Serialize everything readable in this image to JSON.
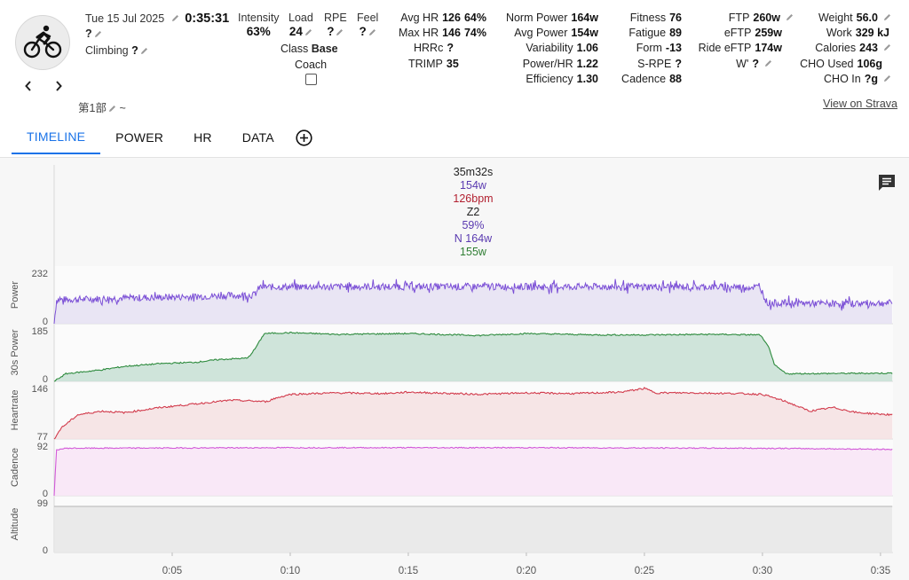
{
  "activity": {
    "date": "Tue 15 Jul 2025",
    "elapsed": "0:35:31",
    "title_value": "?",
    "climbing_label": "Climbing",
    "climbing_value": "?",
    "section_name": "第1部",
    "section_suffix": "~",
    "icon": "cycling-icon"
  },
  "stats": {
    "intensity_label": "Intensity",
    "intensity_value": "63%",
    "load_label": "Load",
    "load_value": "24",
    "rpe_label": "RPE",
    "rpe_value": "?",
    "feel_label": "Feel",
    "feel_value": "?",
    "class_label": "Class",
    "class_value": "Base",
    "coach_label": "Coach"
  },
  "hr_stats": {
    "avg_hr_label": "Avg HR",
    "avg_hr_value": "126",
    "avg_hr_pct": "64%",
    "max_hr_label": "Max HR",
    "max_hr_value": "146",
    "max_hr_pct": "74%",
    "hrrc_label": "HRRc",
    "hrrc_value": "?",
    "trimp_label": "TRIMP",
    "trimp_value": "35"
  },
  "power_stats": {
    "norm_power_label": "Norm Power",
    "norm_power_value": "164w",
    "avg_power_label": "Avg Power",
    "avg_power_value": "154w",
    "variability_label": "Variability",
    "variability_value": "1.06",
    "power_hr_label": "Power/HR",
    "power_hr_value": "1.22",
    "efficiency_label": "Efficiency",
    "efficiency_value": "1.30"
  },
  "fitness_stats": {
    "fitness_label": "Fitness",
    "fitness_value": "76",
    "fatigue_label": "Fatigue",
    "fatigue_value": "89",
    "form_label": "Form",
    "form_value": "-13",
    "srpe_label": "S-RPE",
    "srpe_value": "?",
    "cadence_label": "Cadence",
    "cadence_value": "88"
  },
  "ftp_stats": {
    "ftp_label": "FTP",
    "ftp_value": "260w",
    "eftp_label": "eFTP",
    "eftp_value": "259w",
    "ride_eftp_label": "Ride eFTP",
    "ride_eftp_value": "174w",
    "wprime_label": "W'",
    "wprime_value": "?"
  },
  "body_stats": {
    "weight_label": "Weight",
    "weight_value": "56.0",
    "work_label": "Work",
    "work_value": "329 kJ",
    "calories_label": "Calories",
    "calories_value": "243",
    "cho_used_label": "CHO Used",
    "cho_used_value": "106g",
    "cho_in_label": "CHO In",
    "cho_in_value": "?g"
  },
  "strava_link": "View on Strava",
  "tabs": [
    {
      "label": "TIMELINE",
      "active": true
    },
    {
      "label": "POWER",
      "active": false
    },
    {
      "label": "HR",
      "active": false
    },
    {
      "label": "DATA",
      "active": false
    }
  ],
  "hover_info": {
    "duration": "35m32s",
    "power": "154w",
    "heartrate": "126bpm",
    "zone": "Z2",
    "percent": "59%",
    "norm_power": "N 164w",
    "thirty_s": "155w"
  },
  "colors": {
    "accent": "#1a73e8",
    "power": "#7b4fd6",
    "thirty_s_power": "#2e8b3e",
    "heartrate": "#d23c4d",
    "cadence": "#d25ad8",
    "altitude": "#b5b5b5",
    "info_power": "#5a3ab0",
    "info_hr": "#b22030",
    "info_30s": "#2e7d32"
  },
  "chart_data": {
    "type": "line",
    "x_axis": {
      "unit": "minutes",
      "range": [
        0,
        35.53
      ],
      "ticks": [
        5,
        10,
        15,
        20,
        25,
        30,
        35
      ],
      "tick_labels": [
        "0:05",
        "0:10",
        "0:15",
        "0:20",
        "0:25",
        "0:30",
        "0:35"
      ]
    },
    "panels": [
      {
        "name": "Power",
        "ylim": [
          0,
          232
        ],
        "y_labels": [
          "232",
          "0"
        ],
        "series": [
          {
            "x": [
              0,
              0.1,
              1,
              3,
              5,
              7,
              8.5,
              8.7,
              10,
              15,
              20,
              25,
              29.9,
              30.2,
              31,
              33,
              35.5
            ],
            "y": [
              0,
              110,
              112,
              118,
              122,
              128,
              132,
              168,
              170,
              170,
              170,
              170,
              168,
              95,
              95,
              92,
              95
            ]
          }
        ]
      },
      {
        "name": "30s Power",
        "ylim": [
          0,
          185
        ],
        "y_labels": [
          "185",
          "0"
        ],
        "series": [
          {
            "x": [
              0,
              0.5,
              2,
              3,
              4.5,
              6,
              7,
              8.2,
              8.5,
              8.9,
              10,
              12,
              15,
              18,
              20,
              23,
              25,
              28,
              29.9,
              30.3,
              30.5,
              31,
              35.5
            ],
            "y": [
              0,
              28,
              42,
              55,
              65,
              70,
              80,
              85,
              118,
              175,
              178,
              172,
              175,
              168,
              175,
              170,
              170,
              172,
              170,
              120,
              60,
              28,
              30
            ]
          }
        ]
      },
      {
        "name": "Heartrate",
        "ylim": [
          77,
          146
        ],
        "y_labels": [
          "146",
          "77"
        ],
        "series": [
          {
            "x": [
              0,
              0.3,
              1,
              2,
              3,
              4.5,
              6,
              7.5,
              9,
              9.3,
              10,
              12,
              14,
              15,
              18,
              20,
              22,
              24,
              25,
              25.5,
              27,
              29,
              30,
              31,
              32,
              33,
              34,
              35.5
            ],
            "y": [
              77,
              92,
              110,
              115,
              113,
              120,
              125,
              130,
              128,
              132,
              138,
              140,
              139,
              141,
              138,
              140,
              139,
              141,
              146,
              140,
              140,
              139,
              138,
              128,
              115,
              120,
              113,
              110
            ]
          }
        ]
      },
      {
        "name": "Cadence",
        "ylim": [
          0,
          92
        ],
        "y_labels": [
          "92",
          "0"
        ],
        "series": [
          {
            "x": [
              0,
              0.1,
              0.5,
              10,
              20,
              30,
              35.5
            ],
            "y": [
              0,
              85,
              88,
              89,
              89,
              88,
              86
            ]
          }
        ]
      },
      {
        "name": "Altitude",
        "ylim": [
          0,
          99
        ],
        "y_labels": [
          "99",
          "0"
        ],
        "series": [
          {
            "x": [
              0,
              35.5
            ],
            "y": [
              92,
              92
            ]
          }
        ]
      }
    ]
  }
}
